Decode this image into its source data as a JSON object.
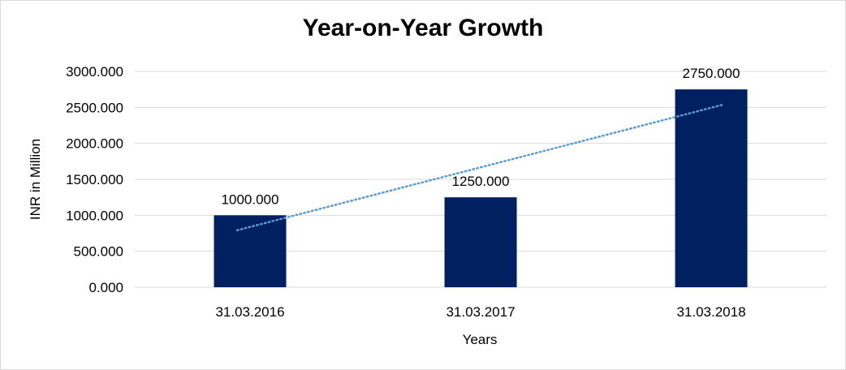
{
  "chart_data": {
    "type": "bar",
    "title": "Year-on-Year Growth",
    "xlabel": "Years",
    "ylabel": "INR in Million",
    "categories": [
      "31.03.2016",
      "31.03.2017",
      "31.03.2018"
    ],
    "values": [
      1000,
      1250,
      2750
    ],
    "data_labels": [
      "1000.000",
      "1250.000",
      "2750.000"
    ],
    "ylim": [
      0,
      3000
    ],
    "yticks": [
      0,
      500,
      1000,
      1500,
      2000,
      2500,
      3000
    ],
    "ytick_labels": [
      "0.000",
      "500.000",
      "1000.000",
      "1500.000",
      "2000.000",
      "2500.000",
      "3000.000"
    ],
    "grid": true,
    "legend": "none",
    "bar_color": "#002060",
    "trendline": {
      "type": "linear",
      "style": "dotted",
      "color": "#5b9bd5"
    }
  }
}
